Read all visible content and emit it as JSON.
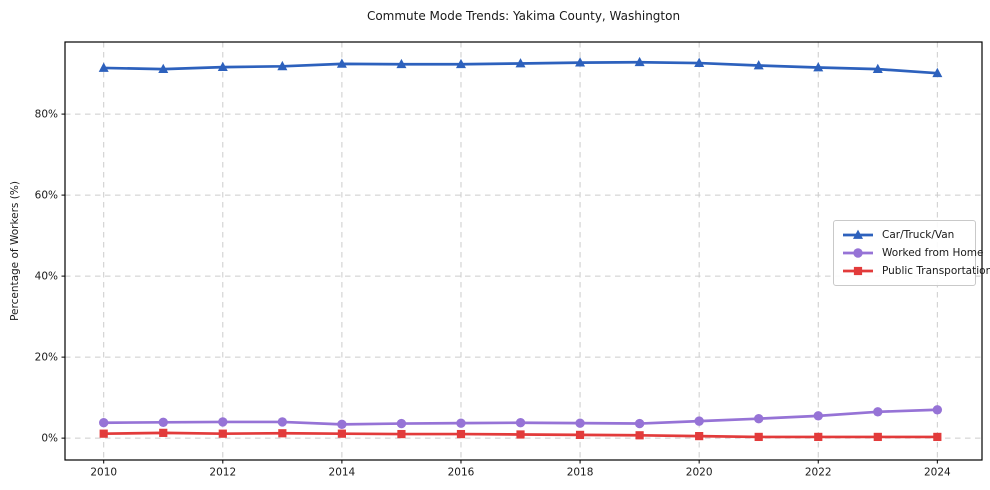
{
  "chart_data": {
    "type": "line",
    "title": "Commute Mode Trends: Yakima County, Washington",
    "xlabel": "",
    "ylabel": "Percentage of Workers (%)",
    "x": [
      2010,
      2011,
      2012,
      2013,
      2014,
      2015,
      2016,
      2017,
      2018,
      2019,
      2020,
      2021,
      2022,
      2023,
      2024
    ],
    "series": [
      {
        "name": "Car/Truck/Van",
        "color": "#2d61bd",
        "marker": "triangle",
        "values": [
          91.4,
          91.1,
          91.6,
          91.8,
          92.4,
          92.3,
          92.3,
          92.5,
          92.7,
          92.8,
          92.6,
          92.0,
          91.5,
          91.1,
          90.1
        ]
      },
      {
        "name": "Worked from Home",
        "color": "#9673d6",
        "marker": "circle",
        "values": [
          3.8,
          3.9,
          4.0,
          4.0,
          3.4,
          3.6,
          3.7,
          3.8,
          3.7,
          3.6,
          4.2,
          4.8,
          5.5,
          6.5,
          7.0
        ]
      },
      {
        "name": "Public Transportation",
        "color": "#e23b3b",
        "marker": "square",
        "values": [
          1.1,
          1.3,
          1.1,
          1.2,
          1.1,
          1.0,
          1.0,
          0.9,
          0.8,
          0.7,
          0.5,
          0.3,
          0.3,
          0.3,
          0.3
        ]
      }
    ],
    "xticks": [
      2010,
      2012,
      2014,
      2016,
      2018,
      2020,
      2022,
      2024
    ],
    "yticks": [
      0,
      20,
      40,
      60,
      80
    ],
    "ytick_suffix": "%",
    "xlim": [
      2009.35,
      2024.75
    ],
    "ylim": [
      -5.4,
      97.8
    ],
    "grid": "dashed",
    "grid_color": "#cccccc",
    "axis_color": "#000000",
    "tick_label_color": "#1a1a1a",
    "legend_position": "center-right",
    "background": "#ffffff"
  }
}
